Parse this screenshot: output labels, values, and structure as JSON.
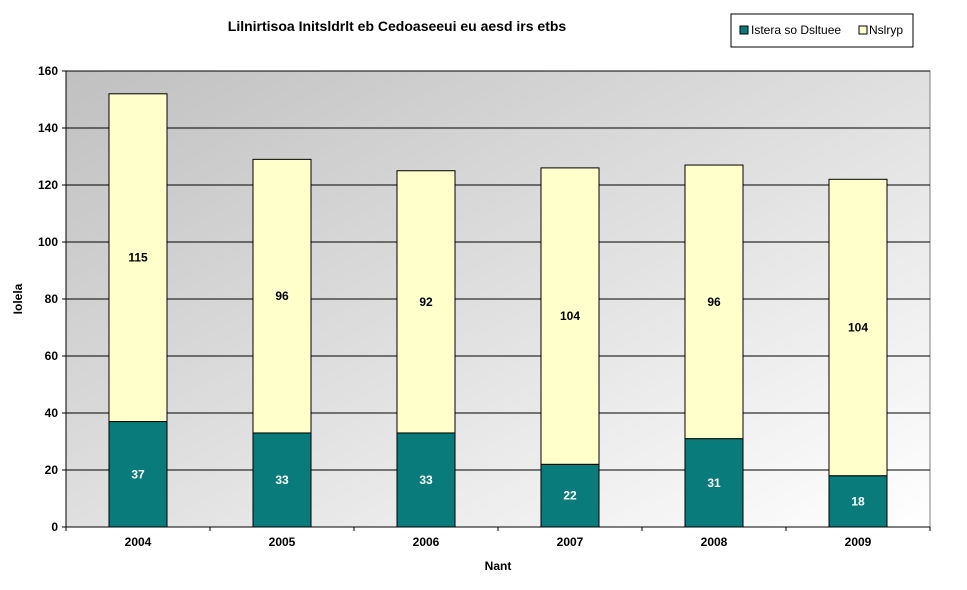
{
  "colors": {
    "series0": "#0a7b7b",
    "series1": "#ffffcc",
    "label_on_series0": "#ffffff",
    "label_on_series1": "#000000",
    "plot_bg_start": "#c0c0c0",
    "plot_bg_end": "#ffffff"
  },
  "chart_data": {
    "type": "bar",
    "stacked": true,
    "title": "Lilnirtisoa Initsldrlt eb Cedoaseeui eu aesd irs etbs",
    "xlabel": "Nant",
    "ylabel": "Iolela",
    "categories": [
      "2004",
      "2005",
      "2006",
      "2007",
      "2008",
      "2009"
    ],
    "series": [
      {
        "name": "Istera so Dsltuee",
        "values": [
          37,
          33,
          33,
          22,
          31,
          18
        ]
      },
      {
        "name": "Nslryp",
        "values": [
          115,
          96,
          92,
          104,
          96,
          104
        ]
      }
    ],
    "ylim": [
      0,
      160
    ],
    "yticks": [
      "0",
      "20",
      "40",
      "60",
      "80",
      "100",
      "120",
      "140",
      "160"
    ],
    "grid": true,
    "legend_position": "top-right",
    "data_labels": true
  }
}
